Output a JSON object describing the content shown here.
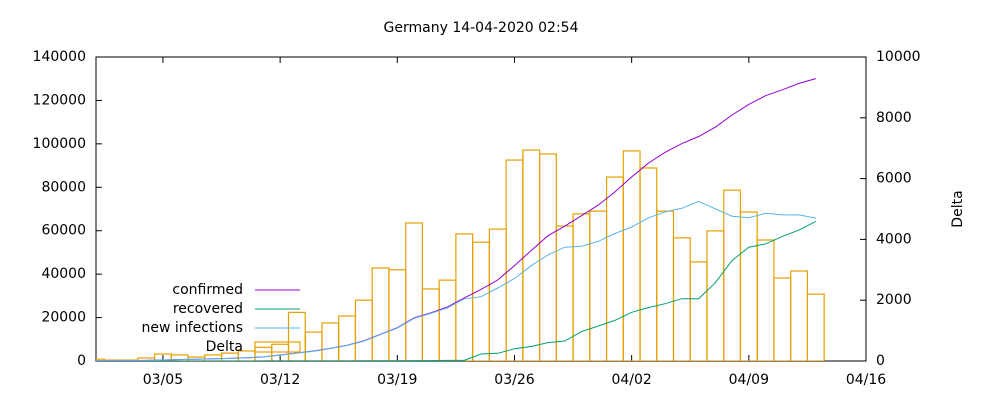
{
  "chart_data": {
    "type": "line",
    "title": "Germany 14-04-2020 02:54",
    "y2label": "Delta",
    "legend": "bottom-left",
    "grid": false,
    "x": [
      "03/01",
      "03/02",
      "03/03",
      "03/04",
      "03/05",
      "03/06",
      "03/07",
      "03/08",
      "03/09",
      "03/10",
      "03/11",
      "03/12",
      "03/13",
      "03/14",
      "03/15",
      "03/16",
      "03/17",
      "03/18",
      "03/19",
      "03/20",
      "03/21",
      "03/22",
      "03/23",
      "03/24",
      "03/25",
      "03/26",
      "03/27",
      "03/28",
      "03/29",
      "03/30",
      "03/31",
      "04/01",
      "04/02",
      "04/03",
      "04/04",
      "04/05",
      "04/06",
      "04/07",
      "04/08",
      "04/09",
      "04/10",
      "04/11",
      "04/12",
      "04/13"
    ],
    "xlim": [
      "03/01",
      "04/16"
    ],
    "xticks": [
      "03/05",
      "03/12",
      "03/19",
      "03/26",
      "04/02",
      "04/09",
      "04/16"
    ],
    "ylim": [
      0,
      140000
    ],
    "yticks": [
      0,
      20000,
      40000,
      60000,
      80000,
      100000,
      120000,
      140000
    ],
    "y2lim": [
      0,
      10000
    ],
    "y2ticks": [
      0,
      2000,
      4000,
      6000,
      8000,
      10000
    ],
    "series": [
      {
        "name": "confirmed",
        "color": "#9400d3",
        "values": [
          130,
          159,
          196,
          262,
          482,
          670,
          799,
          1040,
          1176,
          1457,
          1908,
          2745,
          3675,
          4585,
          5795,
          7272,
          9257,
          12327,
          15320,
          19848,
          22213,
          24873,
          29056,
          32986,
          37323,
          43938,
          50871,
          57695,
          62095,
          66885,
          71808,
          77872,
          84794,
          91159,
          96092,
          100123,
          103374,
          107663,
          113296,
          118181,
          122171,
          124908,
          127854,
          130072
        ]
      },
      {
        "name": "recovered",
        "color": "#009e73",
        "values": [
          16,
          16,
          16,
          16,
          16,
          16,
          18,
          18,
          18,
          18,
          25,
          25,
          46,
          46,
          46,
          46,
          105,
          105,
          113,
          180,
          180,
          266,
          266,
          3243,
          3547,
          5673,
          6658,
          8481,
          9211,
          13500,
          16100,
          18700,
          22440,
          24575,
          26400,
          28700,
          28700,
          36081,
          46300,
          52407,
          53913,
          57400,
          60300,
          64300
        ]
      },
      {
        "name": "new infections",
        "color": "#56b4e9",
        "values": [
          114,
          143,
          180,
          246,
          466,
          654,
          781,
          1022,
          1156,
          1437,
          1880,
          2714,
          3621,
          4531,
          5735,
          7200,
          9126,
          12194,
          15163,
          19596,
          21940,
          24500,
          28639,
          29600,
          33600,
          38000,
          43900,
          48800,
          52400,
          52800,
          55100,
          58700,
          61700,
          65900,
          68700,
          70300,
          73500,
          70100,
          66700,
          66000,
          68000,
          67300,
          67300,
          65800
        ]
      },
      {
        "name": "Delta",
        "type": "bar",
        "axis": "y2",
        "color": "#e69f00",
        "values": [
          60,
          30,
          30,
          100,
          230,
          200,
          130,
          200,
          260,
          330,
          450,
          550,
          1600,
          950,
          1250,
          1480,
          2000,
          3060,
          3000,
          4540,
          2370,
          2660,
          4180,
          3910,
          4340,
          6610,
          6940,
          6810,
          4440,
          4840,
          4930,
          6050,
          6910,
          6350,
          4930,
          4050,
          3260,
          4280,
          5620,
          4900,
          3980,
          2730,
          2960,
          2200
        ]
      }
    ]
  }
}
